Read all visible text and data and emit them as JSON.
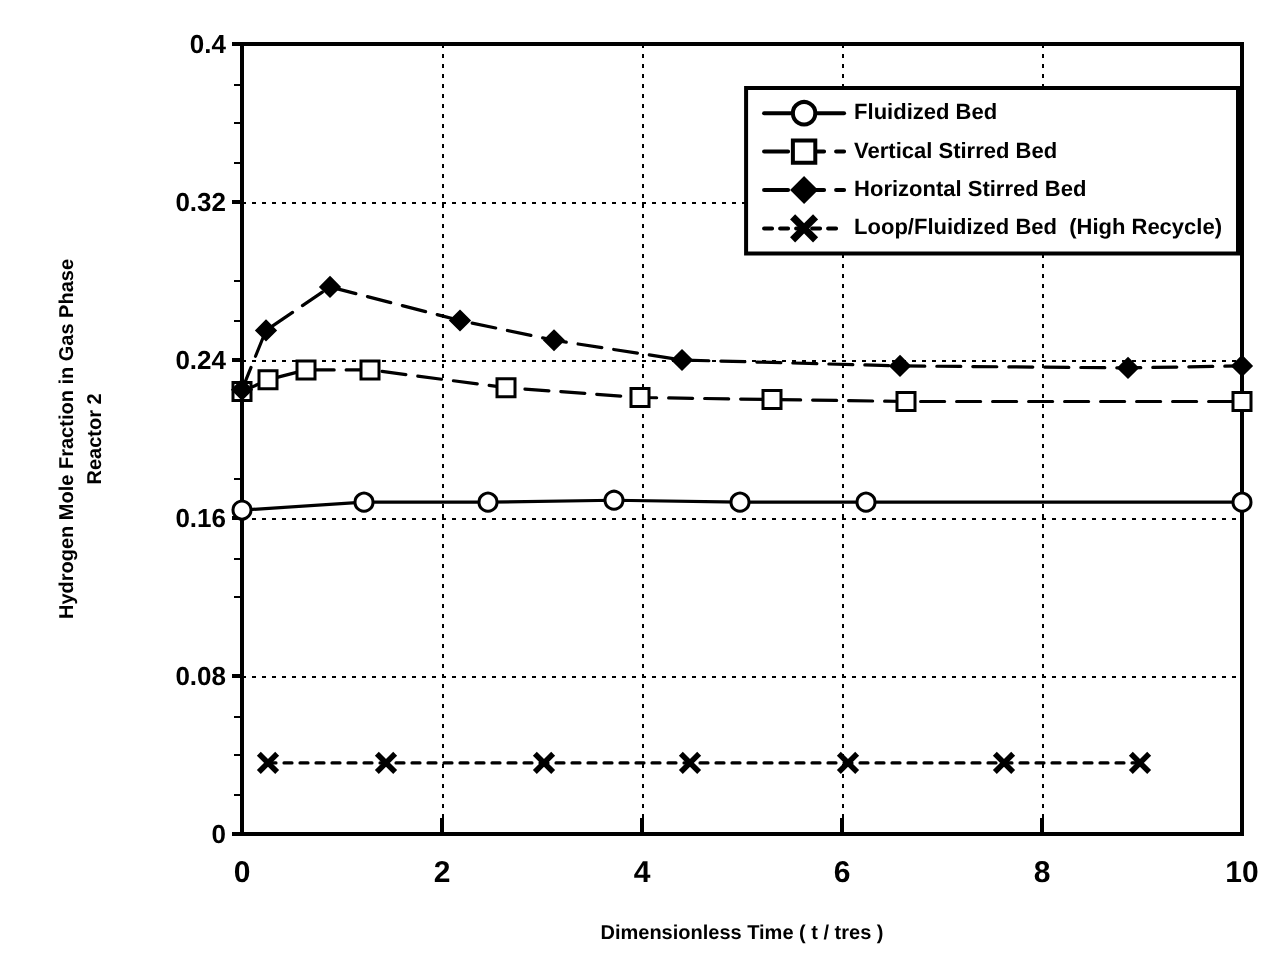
{
  "chart_data": {
    "type": "line",
    "xlabel": "Dimensionless Time ( t / tres )",
    "ylabel": "Hydrogen Mole Fraction in Gas Phase\nReactor 2",
    "xlim": [
      0,
      10
    ],
    "xticks": [
      0,
      2,
      4,
      6,
      8,
      10
    ],
    "ylim": [
      0,
      0.4
    ],
    "yticks": [
      0,
      0.08,
      0.16,
      0.24,
      0.32,
      0.4
    ],
    "grid": true,
    "legend": "top right",
    "series": [
      {
        "name": "Fluidized Bed",
        "color": "#000000",
        "marker": "circle",
        "line_style": "solid",
        "x": [
          0,
          1.22,
          2.46,
          3.72,
          4.98,
          6.24,
          10
        ],
        "values": [
          0.164,
          0.168,
          0.168,
          0.169,
          0.168,
          0.168,
          0.168
        ]
      },
      {
        "name": "Vertical Stirred Bed",
        "color": "#000000",
        "marker": "square",
        "line_style": "dashed",
        "x": [
          0,
          0.26,
          0.64,
          1.28,
          2.64,
          3.98,
          5.3,
          6.64,
          10
        ],
        "values": [
          0.224,
          0.23,
          0.235,
          0.235,
          0.226,
          0.221,
          0.22,
          0.219,
          0.219
        ]
      },
      {
        "name": "Horizontal Stirred Bed",
        "color": "#000000",
        "marker": "diamond",
        "line_style": "dashed",
        "x": [
          0,
          0.24,
          0.88,
          2.18,
          3.12,
          4.4,
          6.58,
          8.86,
          10
        ],
        "values": [
          0.225,
          0.255,
          0.277,
          0.26,
          0.25,
          0.24,
          0.237,
          0.236,
          0.237
        ]
      },
      {
        "name": "Loop/Fluidized Bed  (High Recycle)",
        "color": "#000000",
        "marker": "cross",
        "line_style": "dotted",
        "x": [
          0.26,
          1.44,
          3.02,
          4.48,
          6.06,
          7.62,
          8.98
        ],
        "values": [
          0.036,
          0.036,
          0.036,
          0.036,
          0.036,
          0.036,
          0.036
        ]
      }
    ]
  }
}
